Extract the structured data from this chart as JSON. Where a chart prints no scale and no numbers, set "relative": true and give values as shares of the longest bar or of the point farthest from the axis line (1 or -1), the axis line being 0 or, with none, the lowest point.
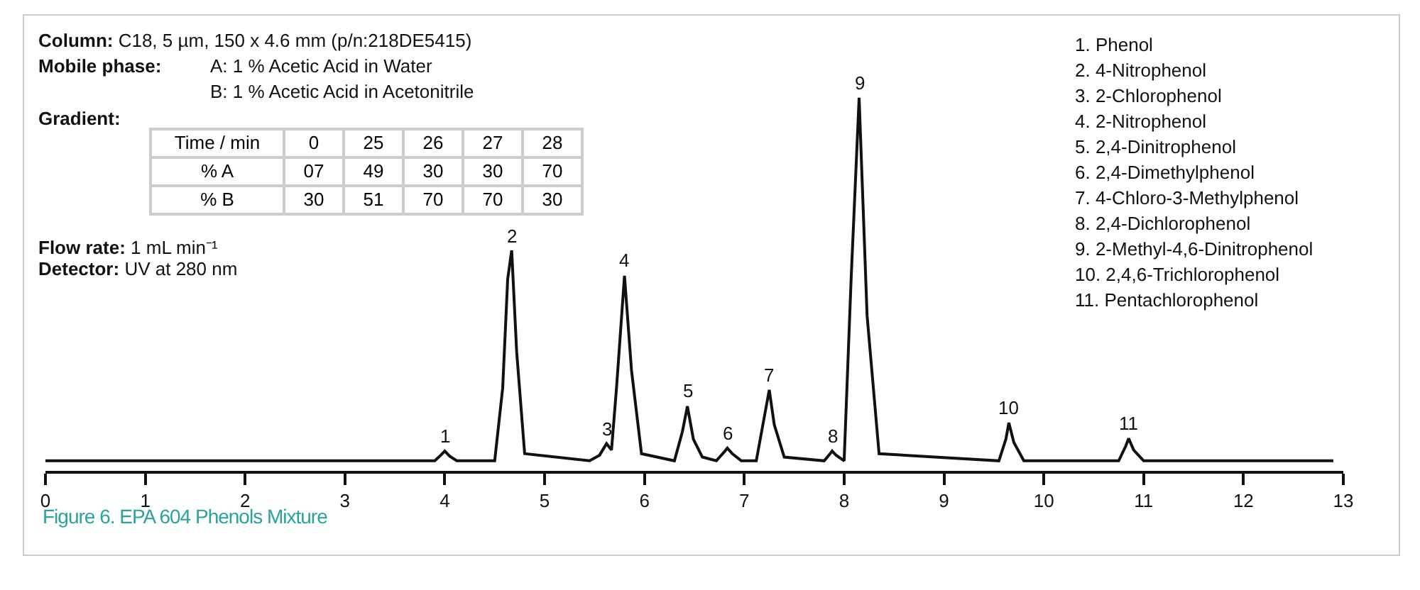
{
  "chart_data": {
    "type": "line",
    "relative": true,
    "grid": false,
    "marker": "none",
    "line_style": "solid",
    "xlim": [
      0,
      13
    ],
    "xticks": [
      0,
      1,
      2,
      3,
      4,
      5,
      6,
      7,
      8,
      9,
      10,
      11,
      12,
      13
    ],
    "series": [
      {
        "color": "#111111",
        "x": [
          0,
          3.9,
          3.96,
          4.0,
          4.05,
          4.12,
          4.5,
          4.58,
          4.63,
          4.67,
          4.72,
          4.8,
          5.45,
          5.55,
          5.62,
          5.67,
          5.72,
          5.8,
          5.87,
          5.97,
          6.3,
          6.38,
          6.43,
          6.49,
          6.58,
          6.72,
          6.8,
          6.83,
          6.88,
          6.97,
          7.12,
          7.2,
          7.25,
          7.3,
          7.4,
          7.8,
          7.86,
          7.88,
          7.92,
          8.0,
          8.07,
          8.15,
          8.23,
          8.35,
          9.55,
          9.62,
          9.65,
          9.7,
          9.8,
          10.75,
          10.82,
          10.85,
          10.9,
          11.0,
          12.9
        ],
        "values": [
          0.027,
          0.027,
          0.042,
          0.053,
          0.039,
          0.027,
          0.027,
          0.222,
          0.514,
          0.591,
          0.319,
          0.046,
          0.027,
          0.042,
          0.073,
          0.056,
          0.222,
          0.523,
          0.27,
          0.046,
          0.027,
          0.105,
          0.173,
          0.085,
          0.037,
          0.027,
          0.051,
          0.061,
          0.046,
          0.027,
          0.027,
          0.144,
          0.217,
          0.124,
          0.037,
          0.027,
          0.046,
          0.053,
          0.042,
          0.027,
          0.514,
          1,
          0.416,
          0.046,
          0.027,
          0.085,
          0.129,
          0.076,
          0.027,
          0.027,
          0.066,
          0.087,
          0.056,
          0.027,
          0.027
        ]
      }
    ],
    "annotations": [
      "Column: C18, 5 µm, 150 x 4.6 mm (p/n:218DE5415)",
      "Mobile phase: A: 1 % Acetic Acid in Water",
      "B: 1 % Acetic Acid in Acetonitrile",
      "Gradient:",
      "Time / min",
      "0",
      "25",
      "26",
      "27",
      "28",
      "% A",
      "07",
      "49",
      "30",
      "30",
      "70",
      "% B",
      "30",
      "51",
      "70",
      "70",
      "30",
      "Flow rate: 1 mL min⁻¹",
      "Detector: UV at 280 nm",
      "1. Phenol",
      "2. 4-Nitrophenol",
      "3. 2-Chlorophenol",
      "4. 2-Nitrophenol",
      "5. 2,4-Dinitrophenol",
      "6. 2,4-Dimethylphenol",
      "7. 4-Chloro-3-Methylphenol",
      "8. 2,4-Dichlorophenol",
      "9. 2-Methyl-4,6-Dinitrophenol",
      "10. 2,4,6-Trichlorophenol",
      "11. Pentachlorophenol",
      "Figure 6. EPA 604 Phenols Mixture",
      {
        "text": "1",
        "x": 4.0,
        "y": 0.053
      },
      {
        "text": "2",
        "x": 4.67,
        "y": 0.591
      },
      {
        "text": "3",
        "x": 5.62,
        "y": 0.073
      },
      {
        "text": "4",
        "x": 5.8,
        "y": 0.523
      },
      {
        "text": "5",
        "x": 6.43,
        "y": 0.173
      },
      {
        "text": "6",
        "x": 6.83,
        "y": 0.061
      },
      {
        "text": "7",
        "x": 7.25,
        "y": 0.217
      },
      {
        "text": "8",
        "x": 7.88,
        "y": 0.053
      },
      {
        "text": "9",
        "x": 8.15,
        "y": 1
      },
      {
        "text": "10",
        "x": 9.65,
        "y": 0.129
      },
      {
        "text": "11",
        "x": 10.85,
        "y": 0.087
      }
    ]
  }
}
